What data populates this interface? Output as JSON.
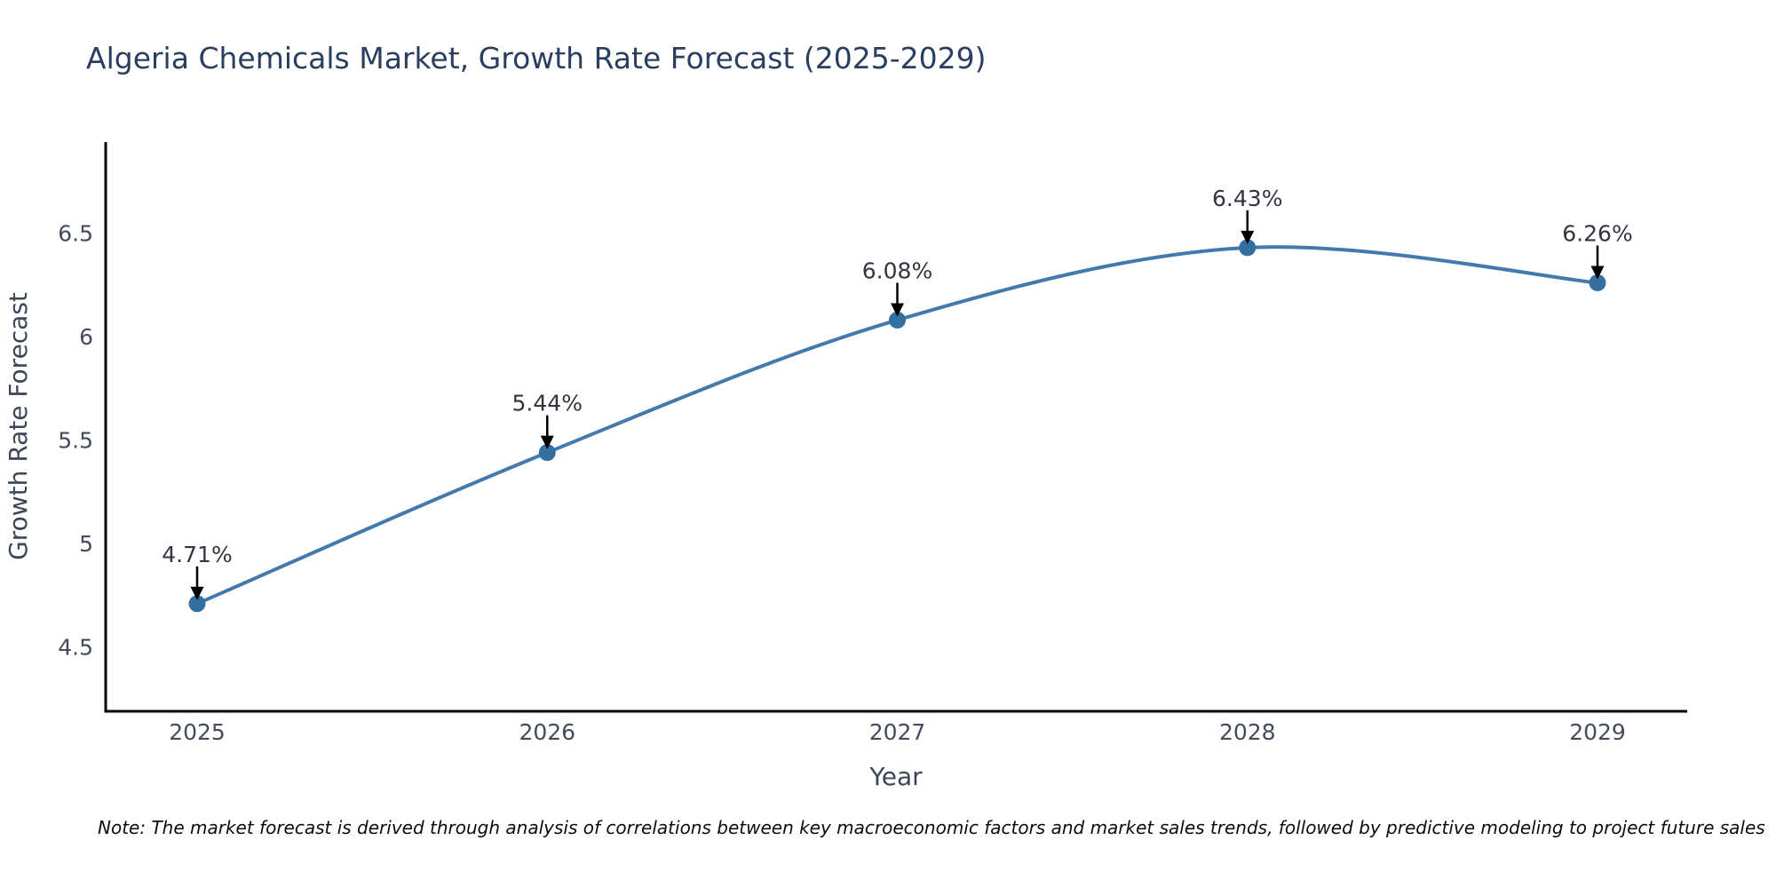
{
  "chart_data": {
    "type": "line",
    "title": "Algeria Chemicals Market, Growth Rate Forecast (2025-2029)",
    "xlabel": "Year",
    "ylabel": "Growth Rate Forecast",
    "categories": [
      "2025",
      "2026",
      "2027",
      "2028",
      "2029"
    ],
    "series": [
      {
        "name": "Growth Rate Forecast",
        "values": [
          4.71,
          5.44,
          6.08,
          6.43,
          6.26
        ]
      }
    ],
    "point_labels": [
      "4.71%",
      "5.44%",
      "6.08%",
      "6.43%",
      "6.26%"
    ],
    "y_ticks": [
      6.5,
      6.0,
      5.5,
      5.0,
      4.5
    ],
    "ylim": [
      4.19,
      6.94
    ],
    "line_shape": "spline",
    "grid": false,
    "legend": false,
    "note": "Note: The market forecast is derived through analysis of correlations between key macroeconomic factors and market sales trends, followed by predictive modeling to project future sales",
    "colors": {
      "background": "#ffffff",
      "line": "#4379ac",
      "marker": "#34709f",
      "axis": "#000000",
      "title_text": "#2a3f5f",
      "tick_text": "#444b5a",
      "axis_title_text": "#3c4657",
      "annotation_text": "#31363f",
      "annotation_arrow": "#000000",
      "note_text": "#0d0d0d"
    }
  }
}
